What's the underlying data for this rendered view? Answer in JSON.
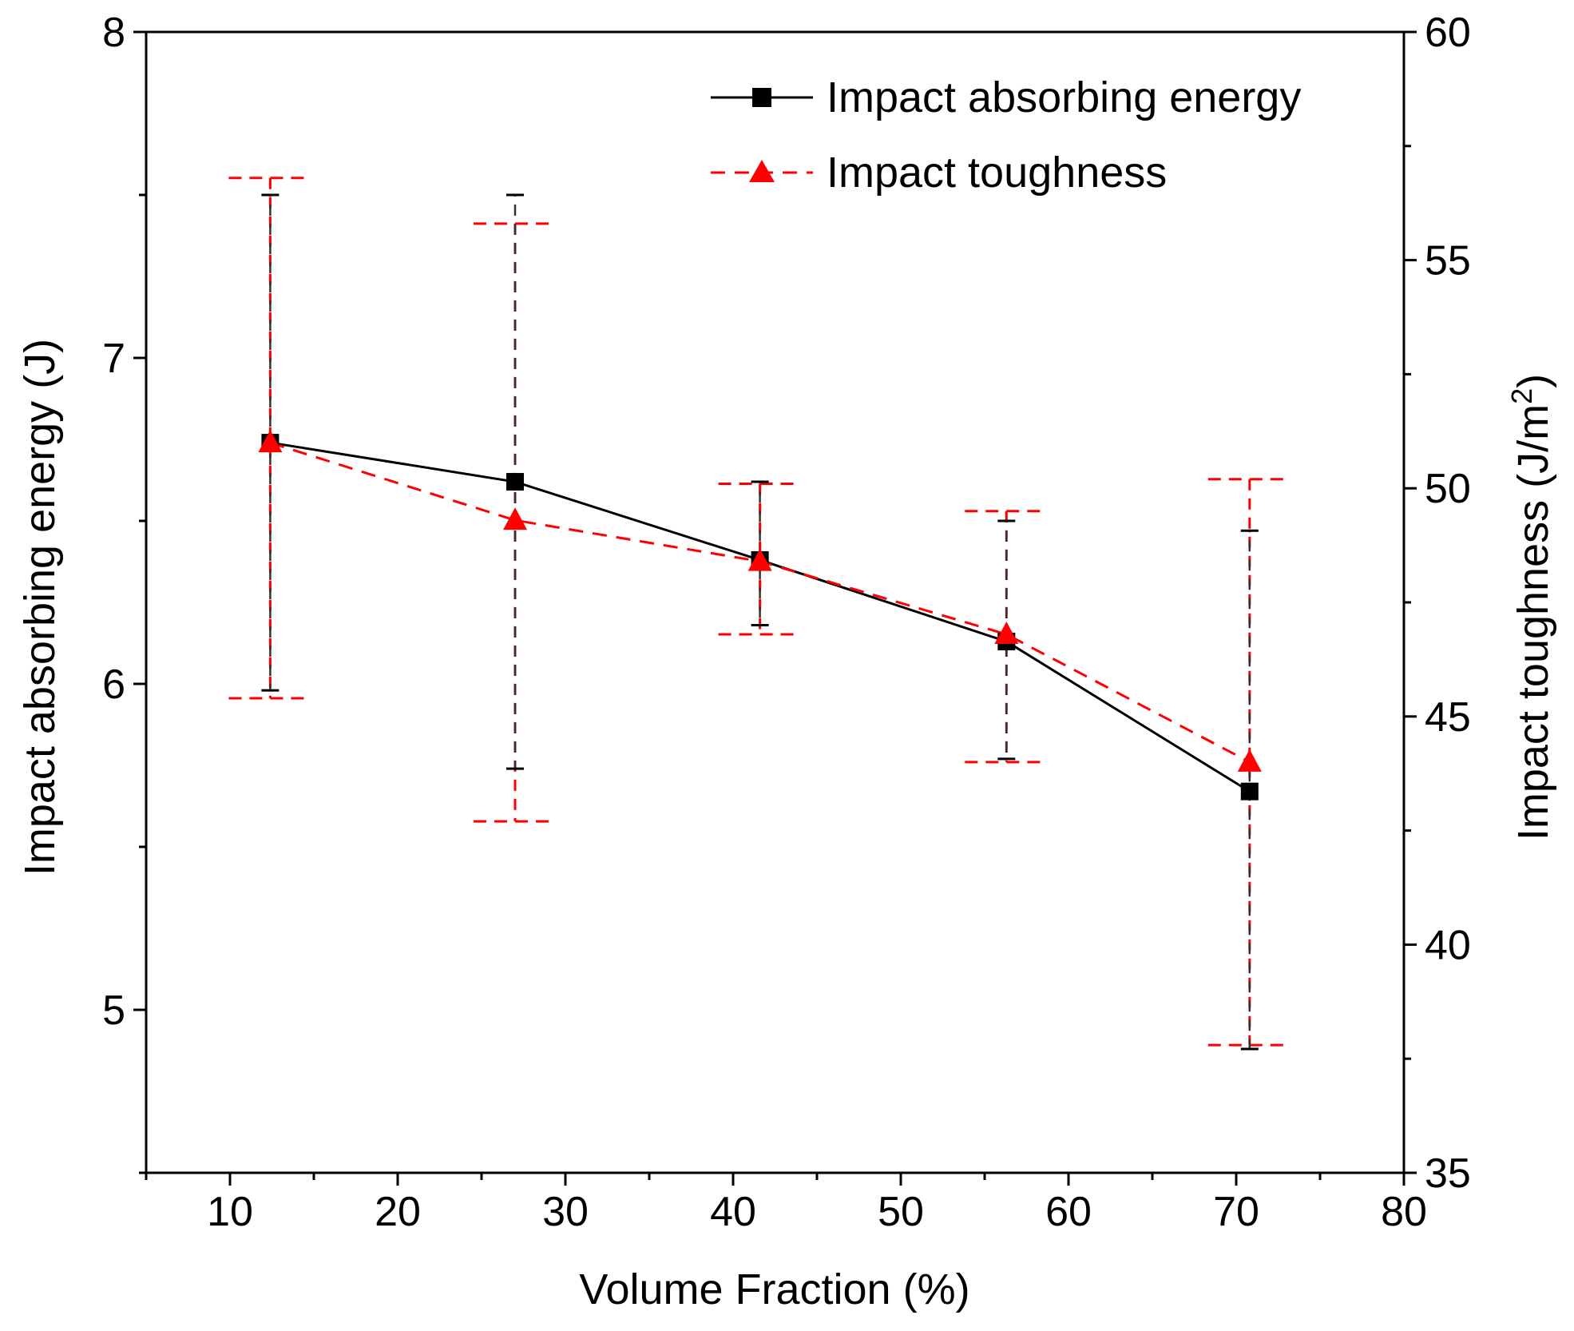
{
  "chart_data": {
    "type": "line",
    "title": "",
    "xlabel": "Volume Fraction (%)",
    "ylabel_left": "Impact absorbing energy (J)",
    "ylabel_right_main": "Impact toughness (J/m",
    "ylabel_right_sup": "2",
    "ylabel_right_close": ")",
    "xlim": [
      5,
      80
    ],
    "ylim_left": [
      4.5,
      8
    ],
    "ylim_right": [
      35,
      60
    ],
    "x_ticks": [
      10,
      20,
      30,
      40,
      50,
      60,
      70,
      80
    ],
    "y_left_ticks": [
      5,
      6,
      7,
      8
    ],
    "y_right_ticks": [
      35,
      40,
      45,
      50,
      55,
      60
    ],
    "legend_position": "top-right",
    "series": [
      {
        "name": "Impact absorbing energy",
        "axis": "left",
        "color": "#000000",
        "line": "solid",
        "marker": "square",
        "x": [
          12.4,
          27.0,
          41.6,
          56.3,
          70.8
        ],
        "y": [
          6.74,
          6.62,
          6.38,
          6.13,
          5.67
        ],
        "err_low": [
          5.98,
          5.74,
          6.18,
          5.77,
          4.88
        ],
        "err_high": [
          7.5,
          7.5,
          6.62,
          6.5,
          6.47
        ]
      },
      {
        "name": "Impact toughness",
        "axis": "right",
        "color": "#ff0000",
        "line": "dashed",
        "marker": "triangle",
        "x": [
          12.4,
          27.0,
          41.6,
          56.3,
          70.8
        ],
        "y": [
          51.0,
          49.3,
          48.4,
          46.8,
          44.0
        ],
        "err_low": [
          45.4,
          42.7,
          46.8,
          44.0,
          37.8
        ],
        "err_high": [
          56.8,
          55.8,
          50.1,
          49.5,
          50.2
        ]
      }
    ]
  }
}
